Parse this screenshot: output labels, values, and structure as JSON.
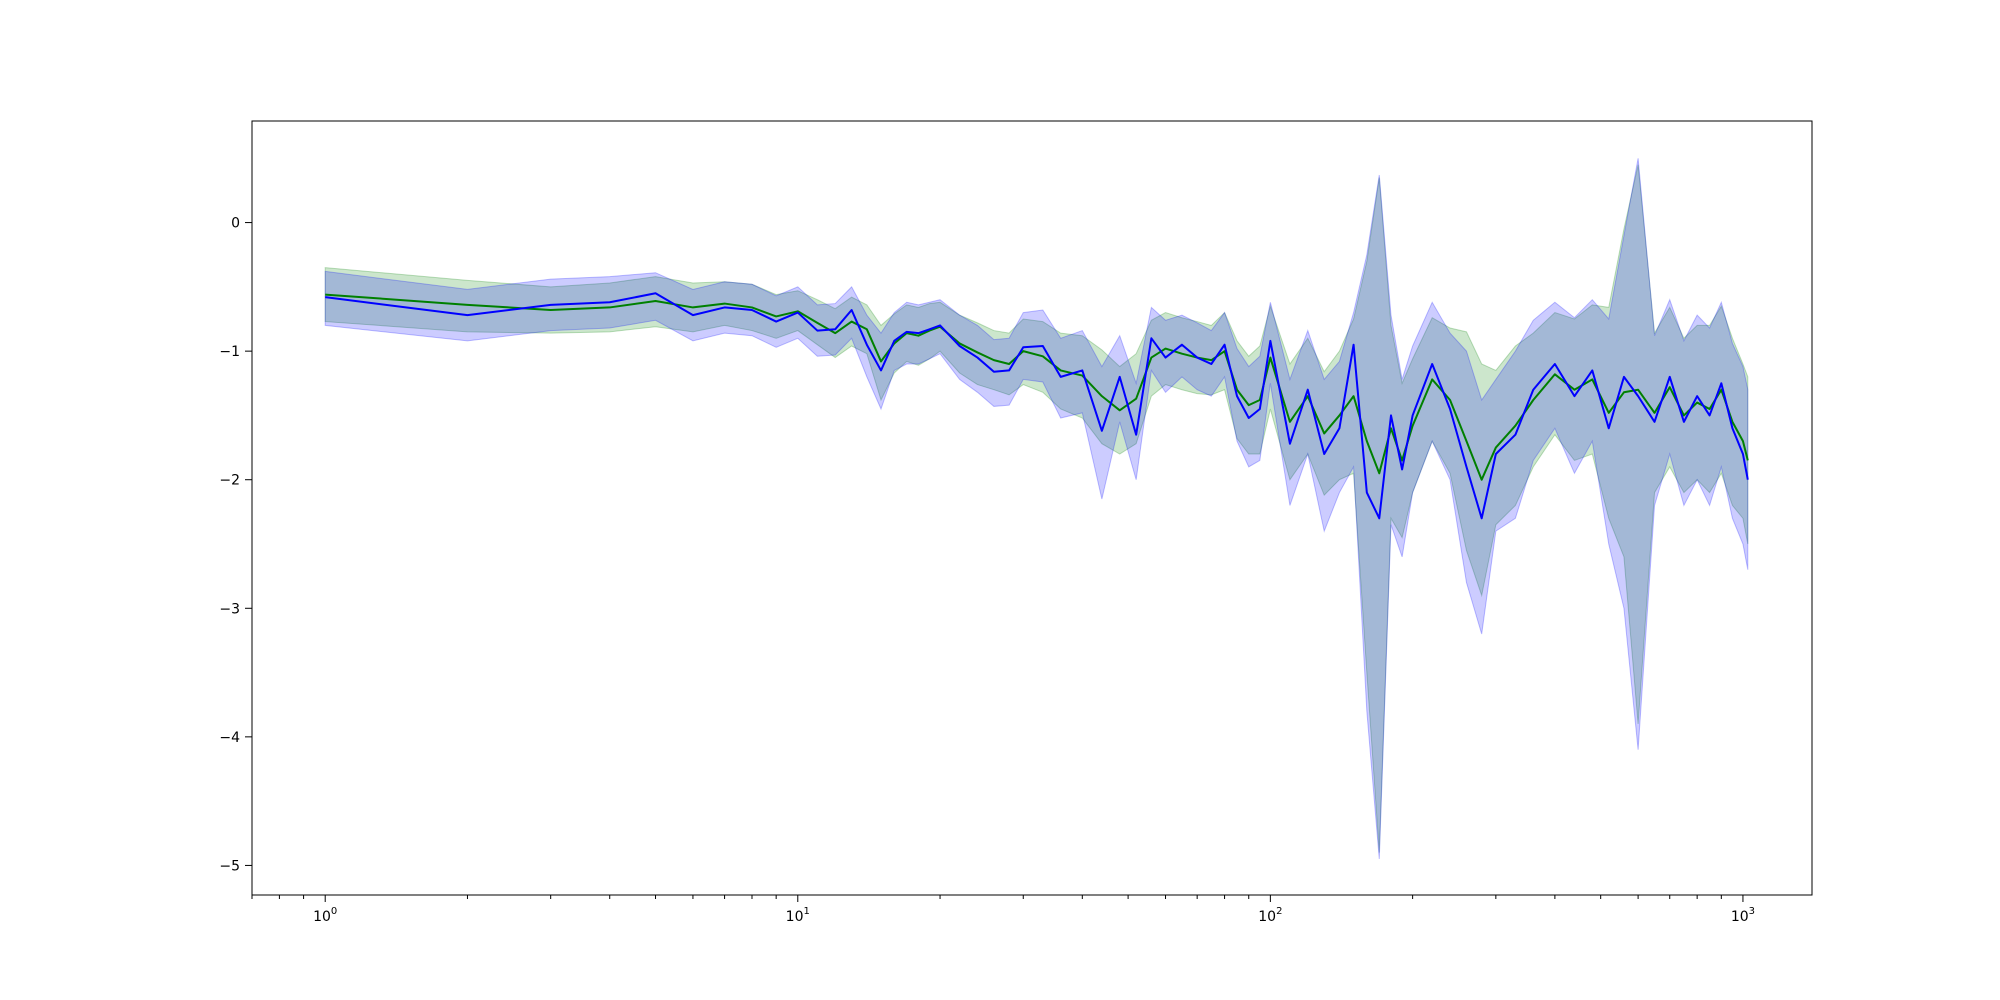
{
  "chart_data": {
    "type": "line",
    "title": "",
    "xlabel": "",
    "ylabel": "",
    "xscale": "log",
    "xlim": [
      0.7,
      1400
    ],
    "ylim": [
      -5.23,
      0.79
    ],
    "grid": false,
    "legend": "none",
    "x_ticks": [
      {
        "base": "10",
        "exp": "0",
        "value": 1
      },
      {
        "base": "10",
        "exp": "1",
        "value": 10
      },
      {
        "base": "10",
        "exp": "2",
        "value": 100
      },
      {
        "base": "10",
        "exp": "3",
        "value": 1000
      }
    ],
    "y_ticks": [
      {
        "label": "0",
        "value": 0
      },
      {
        "label": "−1",
        "value": -1
      },
      {
        "label": "−2",
        "value": -2
      },
      {
        "label": "−3",
        "value": -3
      },
      {
        "label": "−4",
        "value": -4
      },
      {
        "label": "−5",
        "value": -5
      }
    ],
    "series": [
      {
        "color": "#008000",
        "band_color": "#008000",
        "x": [
          1,
          2,
          3,
          4,
          5,
          6,
          7,
          8,
          9,
          10,
          11,
          12,
          13,
          14,
          15,
          16,
          17,
          18,
          19,
          20,
          22,
          24,
          26,
          28,
          30,
          33,
          36,
          40,
          44,
          48,
          52,
          56,
          60,
          65,
          70,
          75,
          80,
          85,
          90,
          95,
          100,
          110,
          120,
          130,
          140,
          150,
          160,
          170,
          180,
          190,
          200,
          220,
          240,
          260,
          280,
          300,
          330,
          360,
          400,
          440,
          480,
          520,
          560,
          600,
          650,
          700,
          750,
          800,
          850,
          900,
          950,
          1000,
          1024
        ],
        "y": [
          -0.56,
          -0.64,
          -0.68,
          -0.66,
          -0.61,
          -0.66,
          -0.63,
          -0.66,
          -0.73,
          -0.69,
          -0.78,
          -0.86,
          -0.77,
          -0.83,
          -1.08,
          -0.94,
          -0.86,
          -0.88,
          -0.84,
          -0.81,
          -0.94,
          -1.01,
          -1.07,
          -1.1,
          -1.0,
          -1.04,
          -1.15,
          -1.19,
          -1.35,
          -1.46,
          -1.37,
          -1.05,
          -0.98,
          -1.02,
          -1.05,
          -1.07,
          -1.0,
          -1.3,
          -1.42,
          -1.38,
          -1.05,
          -1.55,
          -1.35,
          -1.64,
          -1.5,
          -1.35,
          -1.7,
          -1.95,
          -1.6,
          -1.85,
          -1.58,
          -1.22,
          -1.38,
          -1.7,
          -2.0,
          -1.75,
          -1.58,
          -1.38,
          -1.18,
          -1.3,
          -1.22,
          -1.48,
          -1.32,
          -1.3,
          -1.48,
          -1.28,
          -1.5,
          -1.4,
          -1.45,
          -1.3,
          -1.55,
          -1.7,
          -1.85
        ],
        "lower": [
          -0.77,
          -0.85,
          -0.86,
          -0.85,
          -0.81,
          -0.85,
          -0.8,
          -0.84,
          -0.9,
          -0.84,
          -0.95,
          -1.05,
          -0.96,
          -1.02,
          -1.38,
          -1.17,
          -1.08,
          -1.11,
          -1.06,
          -1.0,
          -1.17,
          -1.26,
          -1.3,
          -1.34,
          -1.26,
          -1.32,
          -1.45,
          -1.52,
          -1.72,
          -1.8,
          -1.72,
          -1.35,
          -1.26,
          -1.3,
          -1.33,
          -1.34,
          -1.3,
          -1.68,
          -1.8,
          -1.8,
          -1.45,
          -2.0,
          -1.8,
          -2.12,
          -2.0,
          -1.95,
          -3.5,
          -4.9,
          -2.3,
          -2.45,
          -2.1,
          -1.7,
          -1.95,
          -2.55,
          -2.9,
          -2.35,
          -2.2,
          -1.9,
          -1.65,
          -1.85,
          -1.8,
          -2.3,
          -2.6,
          -3.9,
          -2.1,
          -1.9,
          -2.1,
          -2.0,
          -2.1,
          -1.95,
          -2.2,
          -2.3,
          -2.5
        ],
        "upper": [
          -0.35,
          -0.45,
          -0.5,
          -0.47,
          -0.42,
          -0.47,
          -0.46,
          -0.48,
          -0.56,
          -0.53,
          -0.6,
          -0.67,
          -0.58,
          -0.64,
          -0.8,
          -0.71,
          -0.64,
          -0.66,
          -0.63,
          -0.62,
          -0.72,
          -0.78,
          -0.84,
          -0.86,
          -0.75,
          -0.77,
          -0.86,
          -0.88,
          -0.99,
          -1.12,
          -1.02,
          -0.76,
          -0.7,
          -0.74,
          -0.77,
          -0.8,
          -0.7,
          -0.92,
          -1.04,
          -0.96,
          -0.65,
          -1.1,
          -0.9,
          -1.16,
          -1.0,
          -0.75,
          -0.3,
          0.35,
          -0.8,
          -1.25,
          -1.06,
          -0.74,
          -0.82,
          -0.85,
          -1.1,
          -1.15,
          -0.96,
          -0.86,
          -0.7,
          -0.75,
          -0.64,
          -0.66,
          -0.05,
          0.45,
          -0.86,
          -0.66,
          -0.9,
          -0.8,
          -0.8,
          -0.65,
          -0.9,
          -1.1,
          -1.2
        ]
      },
      {
        "color": "#0000ff",
        "band_color": "#0000ff",
        "x": [
          1,
          2,
          3,
          4,
          5,
          6,
          7,
          8,
          9,
          10,
          11,
          12,
          13,
          14,
          15,
          16,
          17,
          18,
          19,
          20,
          22,
          24,
          26,
          28,
          30,
          33,
          36,
          40,
          44,
          48,
          52,
          56,
          60,
          65,
          70,
          75,
          80,
          85,
          90,
          95,
          100,
          110,
          120,
          130,
          140,
          150,
          160,
          170,
          180,
          190,
          200,
          220,
          240,
          260,
          280,
          300,
          330,
          360,
          400,
          440,
          480,
          520,
          560,
          600,
          650,
          700,
          750,
          800,
          850,
          900,
          950,
          1000,
          1024
        ],
        "y": [
          -0.58,
          -0.72,
          -0.64,
          -0.62,
          -0.55,
          -0.72,
          -0.66,
          -0.68,
          -0.77,
          -0.7,
          -0.84,
          -0.83,
          -0.68,
          -0.95,
          -1.15,
          -0.92,
          -0.85,
          -0.86,
          -0.83,
          -0.8,
          -0.96,
          -1.05,
          -1.16,
          -1.15,
          -0.97,
          -0.96,
          -1.2,
          -1.15,
          -1.62,
          -1.2,
          -1.65,
          -0.9,
          -1.05,
          -0.95,
          -1.05,
          -1.1,
          -0.95,
          -1.35,
          -1.52,
          -1.45,
          -0.92,
          -1.72,
          -1.3,
          -1.8,
          -1.6,
          -0.95,
          -2.1,
          -2.3,
          -1.5,
          -1.92,
          -1.5,
          -1.1,
          -1.45,
          -1.9,
          -2.3,
          -1.8,
          -1.65,
          -1.3,
          -1.1,
          -1.35,
          -1.15,
          -1.6,
          -1.2,
          -1.35,
          -1.55,
          -1.2,
          -1.55,
          -1.35,
          -1.5,
          -1.25,
          -1.6,
          -1.8,
          -2.0
        ],
        "lower": [
          -0.8,
          -0.92,
          -0.84,
          -0.82,
          -0.76,
          -0.92,
          -0.86,
          -0.88,
          -0.97,
          -0.9,
          -1.04,
          -1.03,
          -0.9,
          -1.2,
          -1.45,
          -1.15,
          -1.1,
          -1.1,
          -1.06,
          -1.02,
          -1.22,
          -1.32,
          -1.43,
          -1.42,
          -1.22,
          -1.24,
          -1.52,
          -1.48,
          -2.15,
          -1.55,
          -2.0,
          -1.15,
          -1.32,
          -1.2,
          -1.3,
          -1.35,
          -1.2,
          -1.7,
          -1.9,
          -1.85,
          -1.25,
          -2.2,
          -1.8,
          -2.4,
          -2.1,
          -1.9,
          -3.8,
          -4.95,
          -2.35,
          -2.6,
          -2.1,
          -1.7,
          -2.0,
          -2.8,
          -3.2,
          -2.4,
          -2.3,
          -1.85,
          -1.6,
          -1.95,
          -1.7,
          -2.5,
          -3.0,
          -4.1,
          -2.2,
          -1.8,
          -2.2,
          -2.0,
          -2.2,
          -1.9,
          -2.3,
          -2.5,
          -2.7
        ],
        "upper": [
          -0.38,
          -0.52,
          -0.44,
          -0.42,
          -0.39,
          -0.52,
          -0.46,
          -0.48,
          -0.57,
          -0.5,
          -0.64,
          -0.63,
          -0.5,
          -0.72,
          -0.86,
          -0.7,
          -0.62,
          -0.64,
          -0.62,
          -0.6,
          -0.72,
          -0.8,
          -0.91,
          -0.9,
          -0.7,
          -0.68,
          -0.9,
          -0.84,
          -1.12,
          -0.88,
          -1.25,
          -0.66,
          -0.76,
          -0.72,
          -0.78,
          -0.84,
          -0.7,
          -0.98,
          -1.12,
          -1.04,
          -0.62,
          -1.22,
          -0.84,
          -1.22,
          -1.08,
          -0.7,
          -0.25,
          0.37,
          -0.72,
          -1.22,
          -0.96,
          -0.62,
          -0.86,
          -1.0,
          -1.38,
          -1.22,
          -1.0,
          -0.76,
          -0.62,
          -0.74,
          -0.6,
          -0.75,
          -0.1,
          0.5,
          -0.88,
          -0.6,
          -0.92,
          -0.72,
          -0.82,
          -0.62,
          -0.94,
          -1.12,
          -1.3
        ]
      }
    ]
  }
}
